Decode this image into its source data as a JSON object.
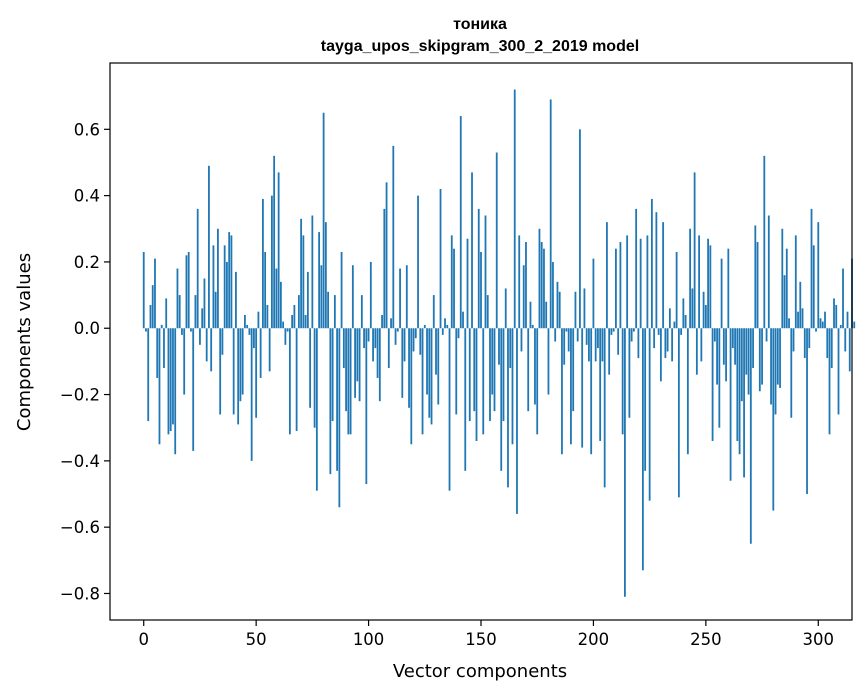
{
  "chart_data": {
    "type": "bar",
    "title": "тоника",
    "subtitle": "tayga_upos_skipgram_300_2_2019 model",
    "xlabel": "Vector components",
    "ylabel": "Components values",
    "xlim": [
      -15,
      315
    ],
    "ylim": [
      -0.88,
      0.8
    ],
    "x_ticks": [
      0,
      50,
      100,
      150,
      200,
      250,
      300
    ],
    "x_tick_labels": [
      "0",
      "50",
      "100",
      "150",
      "200",
      "250",
      "300"
    ],
    "y_ticks": [
      -0.8,
      -0.6,
      -0.4,
      -0.2,
      0.0,
      0.2,
      0.4,
      0.6
    ],
    "y_tick_labels": [
      "−0.8",
      "−0.6",
      "−0.4",
      "−0.2",
      "0.0",
      "0.2",
      "0.4",
      "0.6"
    ],
    "grid": false,
    "bar_color": "#1f77b4",
    "values": [
      0.23,
      -0.01,
      -0.28,
      0.07,
      0.13,
      0.21,
      -0.15,
      -0.35,
      0.01,
      -0.12,
      0.09,
      -0.32,
      -0.31,
      -0.29,
      -0.38,
      0.18,
      0.1,
      -0.02,
      -0.2,
      0.22,
      0.23,
      -0.01,
      -0.37,
      0.1,
      0.36,
      -0.05,
      0.06,
      0.15,
      -0.1,
      0.49,
      -0.13,
      0.25,
      0.11,
      0.3,
      -0.26,
      -0.08,
      0.25,
      0.2,
      0.29,
      0.28,
      -0.26,
      0.17,
      -0.29,
      -0.22,
      -0.2,
      0.04,
      0.01,
      -0.02,
      -0.4,
      -0.06,
      -0.27,
      0.05,
      -0.15,
      0.39,
      0.23,
      0.07,
      -0.13,
      0.4,
      0.52,
      0.18,
      0.47,
      0.14,
      0.02,
      -0.05,
      -0.01,
      -0.32,
      0.04,
      0.07,
      -0.31,
      0.1,
      0.33,
      0.28,
      0.04,
      0.17,
      -0.24,
      0.34,
      -0.3,
      -0.49,
      0.29,
      0.19,
      0.65,
      0.32,
      0.11,
      -0.44,
      -0.28,
      0.1,
      -0.43,
      -0.54,
      0.23,
      -0.12,
      -0.25,
      -0.32,
      -0.32,
      0.19,
      -0.21,
      -0.16,
      -0.22,
      0.1,
      -0.06,
      -0.47,
      -0.04,
      0.2,
      -0.1,
      -0.06,
      -0.15,
      -0.22,
      0.04,
      0.36,
      0.44,
      -0.12,
      0.03,
      0.55,
      -0.05,
      -0.01,
      0.18,
      -0.21,
      -0.1,
      0.19,
      -0.24,
      -0.35,
      -0.07,
      -0.03,
      0.4,
      -0.08,
      -0.32,
      0.01,
      -0.2,
      -0.27,
      -0.29,
      0.1,
      -0.14,
      -0.23,
      0.42,
      -0.02,
      0.03,
      0.01,
      -0.49,
      0.28,
      0.24,
      -0.26,
      -0.03,
      0.64,
      0.05,
      -0.43,
      0.27,
      -0.28,
      0.47,
      -0.25,
      -0.34,
      0.36,
      0.23,
      -0.32,
      0.34,
      0.1,
      -0.28,
      -0.2,
      -0.25,
      0.53,
      -0.11,
      -0.43,
      -0.28,
      0.12,
      -0.48,
      -0.12,
      -0.35,
      0.72,
      -0.56,
      0.28,
      -0.07,
      0.19,
      0.26,
      -0.25,
      0.08,
      0.01,
      -0.23,
      -0.32,
      0.3,
      0.26,
      0.24,
      0.08,
      -0.2,
      0.69,
      0.2,
      -0.04,
      0.14,
      0.11,
      -0.38,
      -0.11,
      -0.01,
      -0.07,
      -0.35,
      -0.25,
      0.11,
      -0.04,
      0.6,
      -0.36,
      0.12,
      -0.05,
      -0.1,
      -0.38,
      0.21,
      -0.1,
      -0.06,
      -0.34,
      -0.1,
      -0.48,
      0.32,
      -0.14,
      -0.02,
      -0.01,
      0.24,
      -0.08,
      0.26,
      -0.32,
      -0.81,
      0.28,
      -0.27,
      -0.04,
      -0.01,
      0.36,
      -0.09,
      0.27,
      -0.73,
      -0.43,
      0.28,
      -0.52,
      0.39,
      -0.06,
      0.35,
      -0.02,
      -0.16,
      0.32,
      -0.09,
      -0.07,
      0.06,
      -0.1,
      0.02,
      0.23,
      -0.51,
      -0.02,
      0.09,
      0.04,
      -0.38,
      0.3,
      0.12,
      0.47,
      -0.14,
      0.28,
      -0.1,
      0.11,
      0.07,
      0.27,
      0.25,
      -0.34,
      -0.04,
      -0.17,
      -0.3,
      0.21,
      -0.11,
      -0.16,
      0.24,
      -0.46,
      -0.06,
      -0.11,
      -0.34,
      -0.38,
      -0.22,
      -0.45,
      -0.14,
      -0.2,
      -0.65,
      -0.12,
      0.31,
      0.26,
      -0.19,
      -0.17,
      0.52,
      -0.04,
      0.34,
      -0.23,
      -0.55,
      -0.26,
      -0.17,
      -0.18,
      0.3,
      0.16,
      0.24,
      0.03,
      -0.27,
      -0.07,
      0.28,
      0.05,
      0.14,
      0.06,
      -0.09,
      -0.5,
      -0.06,
      0.36,
      0.25,
      -0.01,
      0.32,
      0.03,
      0.02,
      0.05,
      -0.09,
      -0.32,
      -0.12,
      0.09,
      0.07,
      -0.26,
      0.01,
      0.18,
      -0.07,
      0.05,
      -0.13,
      0.21,
      0.02
    ]
  }
}
